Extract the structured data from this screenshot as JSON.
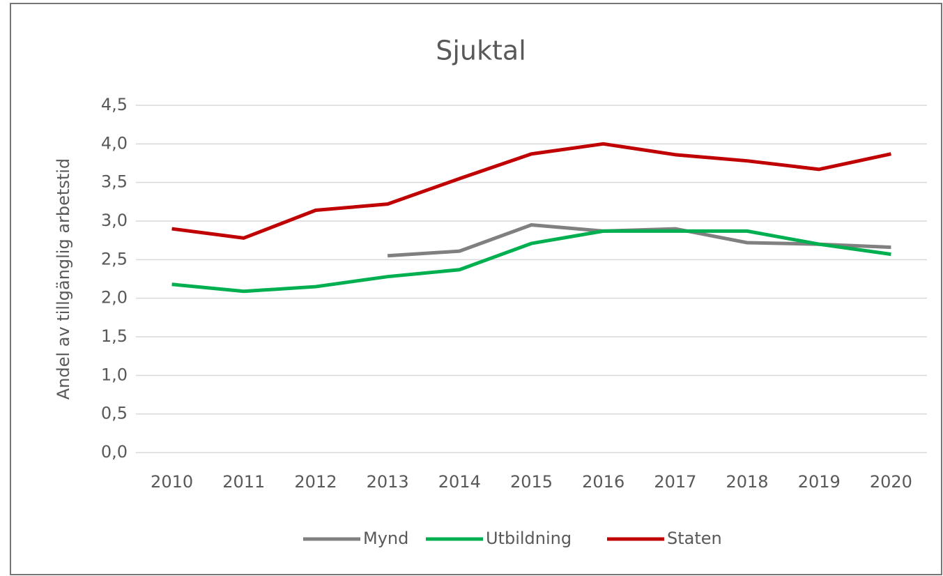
{
  "chart_data": {
    "type": "line",
    "title": "Sjuktal",
    "y_label": "Andel av tillgänglig arbetstid",
    "categories": [
      "2010",
      "2011",
      "2012",
      "2013",
      "2014",
      "2015",
      "2016",
      "2017",
      "2018",
      "2019",
      "2020"
    ],
    "series": [
      {
        "name": "Mynd",
        "color": "#808080",
        "values": [
          null,
          null,
          null,
          2.55,
          2.61,
          2.95,
          2.87,
          2.9,
          2.72,
          2.7,
          2.66
        ]
      },
      {
        "name": "Utbildning",
        "color": "#00b050",
        "values": [
          2.18,
          2.09,
          2.15,
          2.28,
          2.37,
          2.71,
          2.87,
          2.87,
          2.87,
          2.7,
          2.57
        ]
      },
      {
        "name": "Staten",
        "color": "#c00000",
        "values": [
          2.9,
          2.78,
          3.14,
          3.22,
          3.55,
          3.87,
          4.0,
          3.86,
          3.78,
          3.67,
          3.87
        ]
      }
    ],
    "ylim": [
      0,
      4.5
    ],
    "yticks": [
      {
        "value": 0,
        "label": "0,0"
      },
      {
        "value": 0.5,
        "label": "0,5"
      },
      {
        "value": 1,
        "label": "1,0"
      },
      {
        "value": 1.5,
        "label": "1,5"
      },
      {
        "value": 2,
        "label": "2,0"
      },
      {
        "value": 2.5,
        "label": "2,5"
      },
      {
        "value": 3,
        "label": "3,0"
      },
      {
        "value": 3.5,
        "label": "3,5"
      },
      {
        "value": 4,
        "label": "4,0"
      },
      {
        "value": 4.5,
        "label": "4,5"
      }
    ],
    "grid": true,
    "legend": "bottom"
  }
}
